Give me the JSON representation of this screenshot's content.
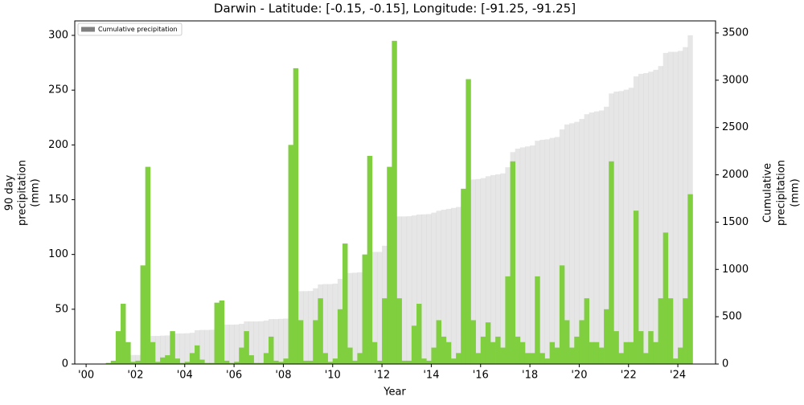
{
  "chart_data": {
    "type": "bar",
    "title": "Darwin - Latitude: [-0.15, -0.15], Longitude: [-91.25, -91.25]",
    "xlabel": "Year",
    "ylabel": [
      "90 day",
      "precipitation",
      "(mm)"
    ],
    "y2label": [
      "Cumulative",
      "precipitation",
      "(mm)"
    ],
    "bar_width": 0.2,
    "x": [
      2000.0,
      2000.2,
      2000.4,
      2000.6,
      2000.8,
      2001.0,
      2001.2,
      2001.4,
      2001.6,
      2001.8,
      2002.0,
      2002.2,
      2002.4,
      2002.6,
      2002.8,
      2003.0,
      2003.2,
      2003.4,
      2003.6,
      2003.8,
      2004.0,
      2004.2,
      2004.4,
      2004.6,
      2004.8,
      2005.0,
      2005.2,
      2005.4,
      2005.6,
      2005.8,
      2006.0,
      2006.2,
      2006.4,
      2006.6,
      2006.8,
      2007.0,
      2007.2,
      2007.4,
      2007.6,
      2007.8,
      2008.0,
      2008.2,
      2008.4,
      2008.6,
      2008.8,
      2009.0,
      2009.2,
      2009.4,
      2009.6,
      2009.8,
      2010.0,
      2010.2,
      2010.4,
      2010.6,
      2010.8,
      2011.0,
      2011.2,
      2011.4,
      2011.6,
      2011.8,
      2012.0,
      2012.2,
      2012.4,
      2012.6,
      2012.8,
      2013.0,
      2013.2,
      2013.4,
      2013.6,
      2013.8,
      2014.0,
      2014.2,
      2014.4,
      2014.6,
      2014.8,
      2015.0,
      2015.2,
      2015.4,
      2015.6,
      2015.8,
      2016.0,
      2016.2,
      2016.4,
      2016.6,
      2016.8,
      2017.0,
      2017.2,
      2017.4,
      2017.6,
      2017.8,
      2018.0,
      2018.2,
      2018.4,
      2018.6,
      2018.8,
      2019.0,
      2019.2,
      2019.4,
      2019.6,
      2019.8,
      2020.0,
      2020.2,
      2020.4,
      2020.6,
      2020.8,
      2021.0,
      2021.2,
      2021.4,
      2021.6,
      2021.8,
      2022.0,
      2022.2,
      2022.4,
      2022.6,
      2022.8,
      2023.0,
      2023.2,
      2023.4,
      2023.6,
      2023.8,
      2024.0,
      2024.2,
      2024.4
    ],
    "series": [
      {
        "name": "Cumulative precipitation",
        "color": "#808080",
        "axis": "y2",
        "values": [
          0,
          0,
          0,
          0,
          0,
          0,
          0,
          40,
          90,
          95,
          95,
          110,
          260,
          297,
          297,
          300,
          302,
          320,
          323,
          323,
          325,
          330,
          357,
          360,
          360,
          362,
          380,
          416,
          416,
          416,
          418,
          425,
          450,
          450,
          450,
          452,
          460,
          475,
          475,
          477,
          480,
          600,
          765,
          770,
          770,
          772,
          800,
          841,
          845,
          845,
          850,
          900,
          960,
          962,
          965,
          970,
          1050,
          1181,
          1185,
          1185,
          1250,
          1420,
          1555,
          1560,
          1560,
          1562,
          1570,
          1580,
          1582,
          1585,
          1600,
          1620,
          1631,
          1640,
          1650,
          1660,
          1800,
          1937,
          1950,
          1955,
          1965,
          1985,
          1997,
          2005,
          2015,
          2080,
          2240,
          2277,
          2290,
          2300,
          2310,
          2360,
          2370,
          2375,
          2390,
          2400,
          2480,
          2532,
          2545,
          2560,
          2590,
          2640,
          2659,
          2670,
          2680,
          2720,
          2860,
          2880,
          2885,
          2900,
          2920,
          3040,
          3067,
          3075,
          3090,
          3110,
          3150,
          3288,
          3300,
          3300,
          3310,
          3350,
          3475
        ]
      },
      {
        "color": "#7fcf3f",
        "values": [
          0,
          0,
          0,
          0,
          1,
          3,
          30,
          55,
          20,
          2,
          3,
          90,
          180,
          20,
          2,
          6,
          8,
          30,
          5,
          1,
          2,
          10,
          17,
          4,
          1,
          1,
          56,
          58,
          3,
          1,
          2,
          15,
          30,
          8,
          1,
          1,
          10,
          25,
          3,
          2,
          5,
          200,
          270,
          40,
          3,
          3,
          40,
          60,
          10,
          2,
          5,
          50,
          110,
          15,
          3,
          10,
          100,
          190,
          20,
          3,
          60,
          180,
          295,
          60,
          3,
          3,
          35,
          55,
          5,
          3,
          15,
          40,
          25,
          20,
          5,
          10,
          160,
          260,
          40,
          10,
          25,
          38,
          20,
          25,
          15,
          80,
          185,
          25,
          20,
          10,
          10,
          80,
          10,
          5,
          20,
          15,
          90,
          40,
          15,
          25,
          40,
          60,
          20,
          20,
          15,
          50,
          185,
          30,
          10,
          20,
          20,
          140,
          30,
          10,
          30,
          20,
          60,
          120,
          60,
          5,
          15,
          60,
          155
        ]
      }
    ],
    "xlim": [
      1999.54,
      2025.53
    ],
    "xticks": [
      {
        "value": 2000,
        "label": "'00"
      },
      {
        "value": 2002,
        "label": "'02"
      },
      {
        "value": 2004,
        "label": "'04"
      },
      {
        "value": 2006,
        "label": "'06"
      },
      {
        "value": 2008,
        "label": "'08"
      },
      {
        "value": 2010,
        "label": "'10"
      },
      {
        "value": 2012,
        "label": "'12"
      },
      {
        "value": 2014,
        "label": "'14"
      },
      {
        "value": 2016,
        "label": "'16"
      },
      {
        "value": 2018,
        "label": "'18"
      },
      {
        "value": 2020,
        "label": "'20"
      },
      {
        "value": 2022,
        "label": "'22"
      },
      {
        "value": 2024,
        "label": "'24"
      }
    ],
    "ylim": [
      0,
      313.2
    ],
    "yticks": [
      0,
      50,
      100,
      150,
      200,
      250,
      300
    ],
    "y2lim": [
      0,
      3627
    ],
    "y2ticks": [
      0,
      500,
      1000,
      1500,
      2000,
      2500,
      3000,
      3500
    ],
    "legend": "upper left"
  }
}
